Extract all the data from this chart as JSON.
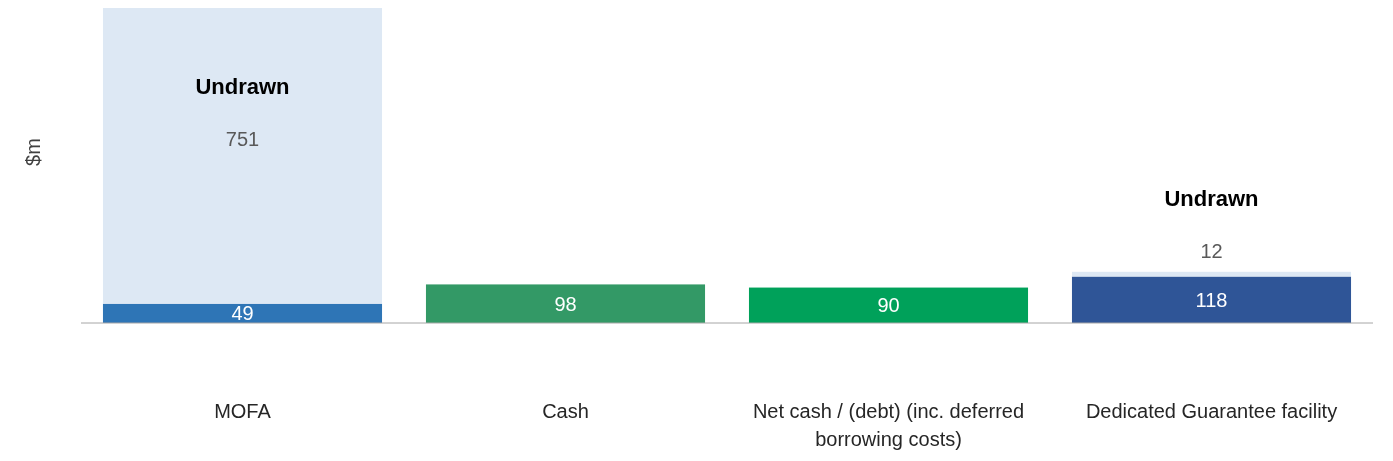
{
  "chart_data": {
    "type": "bar",
    "stacked": true,
    "ylabel": "$m",
    "data_labels": true,
    "categories": [
      "MOFA",
      "Cash",
      "Net cash / (debt) (inc. deferred borrowing costs)",
      "Dedicated Guarantee facility"
    ],
    "series": [
      {
        "colors": [
          "#2e75b6",
          "#339966",
          "#00a15a",
          "#2f5597"
        ],
        "values": [
          49,
          98,
          90,
          118
        ]
      },
      {
        "name": "Undrawn",
        "color": "#dde8f4",
        "values": [
          751,
          null,
          null,
          12
        ]
      }
    ]
  }
}
